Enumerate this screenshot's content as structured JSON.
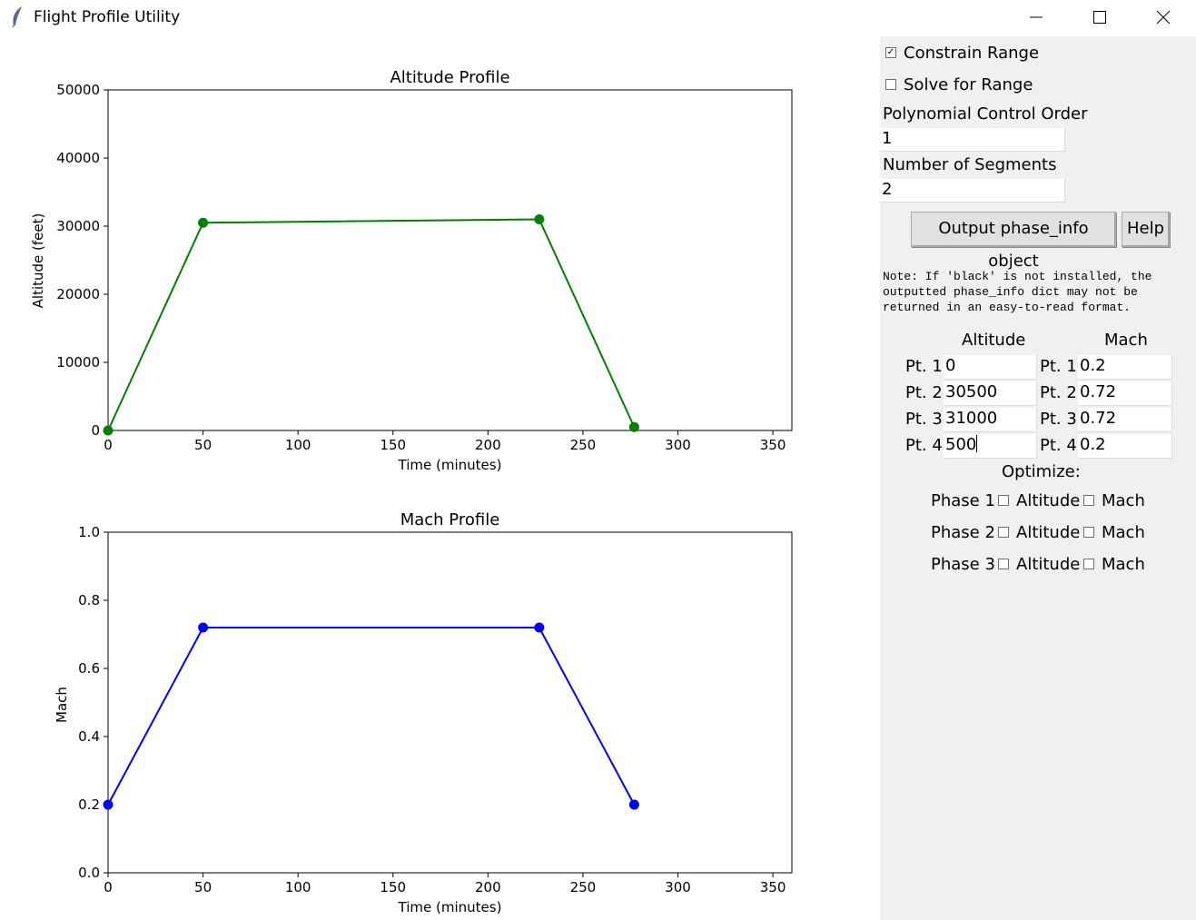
{
  "window": {
    "title": "Flight Profile Utility"
  },
  "altitude_chart": {
    "title": "Altitude Profile",
    "xlabel": "Time (minutes)",
    "ylabel": "Altitude (feet)",
    "x_ticks": [
      0,
      50,
      100,
      150,
      200,
      250,
      300,
      350
    ],
    "y_ticks": [
      0,
      10000,
      20000,
      30000,
      40000,
      50000
    ],
    "color": "#008000"
  },
  "mach_chart": {
    "title": "Mach Profile",
    "xlabel": "Time (minutes)",
    "ylabel": "Mach",
    "x_ticks": [
      0,
      50,
      100,
      150,
      200,
      250,
      300,
      350
    ],
    "y_ticks": [
      "0.0",
      "0.2",
      "0.4",
      "0.6",
      "0.8",
      "1.0"
    ],
    "color": "#0000ff"
  },
  "chart_data": [
    {
      "type": "line",
      "title": "Altitude Profile",
      "xlabel": "Time (minutes)",
      "ylabel": "Altitude (feet)",
      "xlim": [
        0,
        360
      ],
      "ylim": [
        0,
        50000
      ],
      "grid": false,
      "x": [
        0,
        50,
        227,
        277
      ],
      "y": [
        0,
        30500,
        31000,
        500
      ]
    },
    {
      "type": "line",
      "title": "Mach Profile",
      "xlabel": "Time (minutes)",
      "ylabel": "Mach",
      "xlim": [
        0,
        360
      ],
      "ylim": [
        0,
        1.0
      ],
      "grid": false,
      "x": [
        0,
        50,
        227,
        277
      ],
      "y": [
        0.2,
        0.72,
        0.72,
        0.2
      ]
    }
  ],
  "panel": {
    "constrain_range": {
      "label": "Constrain Range",
      "checked": true
    },
    "solve_for_range": {
      "label": "Solve for Range",
      "checked": false
    },
    "poly_order": {
      "label": "Polynomial Control Order",
      "value": "1"
    },
    "num_segments": {
      "label": "Number of Segments",
      "value": "2"
    },
    "output_button": "Output phase_info object",
    "help_button": "Help",
    "note": "Note: If 'black' is not installed, the\noutputted phase_info dict may not be\nreturned in an easy-to-read format.",
    "altitude_header": "Altitude",
    "mach_header": "Mach",
    "points": [
      {
        "label": "Pt. 1",
        "altitude": "0",
        "mach": "0.2"
      },
      {
        "label": "Pt. 2",
        "altitude": "30500",
        "mach": "0.72"
      },
      {
        "label": "Pt. 3",
        "altitude": "31000",
        "mach": "0.72"
      },
      {
        "label": "Pt. 4",
        "altitude": "500",
        "mach": "0.2"
      }
    ],
    "optimize_label": "Optimize:",
    "phases": [
      {
        "label": "Phase 1",
        "altitude_label": "Altitude",
        "mach_label": "Mach"
      },
      {
        "label": "Phase 2",
        "altitude_label": "Altitude",
        "mach_label": "Mach"
      },
      {
        "label": "Phase 3",
        "altitude_label": "Altitude",
        "mach_label": "Mach"
      }
    ],
    "check_mark": "✓"
  }
}
